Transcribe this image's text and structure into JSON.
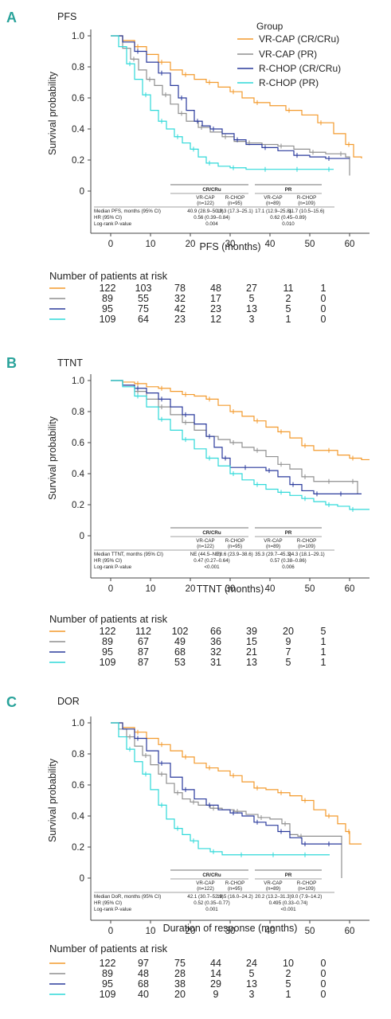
{
  "colors": {
    "vrcap_crcru": "#f39a2c",
    "vrcap_pr": "#8f8f8f",
    "rchop_crcru": "#2a3a9c",
    "rchop_pr": "#2fd9d9",
    "panel_letter": "#2aa39b"
  },
  "legend": {
    "title": "Group",
    "entries": [
      "VR-CAP (CR/CRu)",
      "VR-CAP (PR)",
      "R-CHOP (CR/CRu)",
      "R-CHOP (PR)"
    ]
  },
  "risk_title": "Number of patients at risk",
  "chart_data": [
    {
      "type": "line",
      "panel_letter": "A",
      "title": "PFS",
      "xlabel": "PFS (months)",
      "ylabel": "Survival probability",
      "xlim": [
        -5,
        65
      ],
      "ylim": [
        0,
        1
      ],
      "xticks": [
        "0",
        "10",
        "20",
        "30",
        "40",
        "50",
        "60"
      ],
      "yticks": [
        "0",
        "0.2",
        "0.4",
        "0.6",
        "0.8",
        "1.0"
      ],
      "series": [
        {
          "name": "VR-CAP (CR/CRu)",
          "x": [
            0,
            3,
            6,
            9,
            12,
            15,
            18,
            21,
            24,
            27,
            30,
            33,
            36,
            40,
            44,
            48,
            52,
            56,
            59,
            61,
            63
          ],
          "y": [
            1.0,
            0.97,
            0.93,
            0.88,
            0.83,
            0.78,
            0.75,
            0.72,
            0.7,
            0.67,
            0.64,
            0.6,
            0.57,
            0.55,
            0.52,
            0.49,
            0.44,
            0.37,
            0.3,
            0.22,
            0.21
          ]
        },
        {
          "name": "VR-CAP (PR)",
          "x": [
            0,
            3,
            5,
            7,
            9,
            11,
            13,
            15,
            17,
            19,
            22,
            25,
            28,
            31,
            34,
            38,
            42,
            46,
            50,
            54,
            57,
            59,
            60
          ],
          "y": [
            1.0,
            0.92,
            0.85,
            0.78,
            0.72,
            0.68,
            0.62,
            0.56,
            0.5,
            0.45,
            0.41,
            0.38,
            0.35,
            0.32,
            0.31,
            0.3,
            0.29,
            0.27,
            0.25,
            0.24,
            0.24,
            0.22,
            0.1
          ]
        },
        {
          "name": "R-CHOP (CR/CRu)",
          "x": [
            0,
            3,
            6,
            9,
            12,
            15,
            17,
            19,
            21,
            23,
            25,
            28,
            31,
            34,
            38,
            42,
            46,
            50,
            54,
            58,
            60
          ],
          "y": [
            1.0,
            0.96,
            0.9,
            0.83,
            0.76,
            0.68,
            0.6,
            0.52,
            0.45,
            0.42,
            0.4,
            0.37,
            0.33,
            0.3,
            0.28,
            0.26,
            0.23,
            0.22,
            0.21,
            0.21,
            0.21
          ]
        },
        {
          "name": "R-CHOP (PR)",
          "x": [
            0,
            2,
            4,
            6,
            8,
            10,
            12,
            14,
            16,
            18,
            20,
            22,
            24,
            27,
            30,
            34,
            38,
            42,
            46,
            50,
            54,
            56
          ],
          "y": [
            1.0,
            0.93,
            0.82,
            0.72,
            0.62,
            0.52,
            0.45,
            0.4,
            0.35,
            0.31,
            0.27,
            0.22,
            0.18,
            0.16,
            0.15,
            0.14,
            0.14,
            0.14,
            0.14,
            0.14,
            0.14,
            0.14
          ]
        }
      ],
      "stats_table": {
        "group_headers": [
          "CR/CRu",
          "PR"
        ],
        "col_headers": [
          [
            "VR-CAP",
            "(n=122)"
          ],
          [
            "R-CHOP",
            "(n=95)"
          ],
          [
            "VR-CAP",
            "(n=89)"
          ],
          [
            "R-CHOP",
            "(n=109)"
          ]
        ],
        "rows": [
          {
            "label": "Median PFS, months (95% CI)",
            "values": [
              "40.9 (28.9–50.2)",
              "19.3 (17.3–25.1)",
              "17.1 (12.9–25.8)",
              "11.7 (10.5–15.6)"
            ]
          },
          {
            "label": "HR (95% CI)",
            "values": [
              "0.56 (0.39–0.84)",
              "0.62 (0.45–0.89)"
            ]
          },
          {
            "label": "Log-rank P-value",
            "values": [
              "0.004",
              "0.010"
            ]
          }
        ]
      },
      "risk": [
        [
          "122",
          "103",
          "78",
          "48",
          "27",
          "11",
          "1"
        ],
        [
          "89",
          "55",
          "32",
          "17",
          "5",
          "2",
          "0"
        ],
        [
          "95",
          "75",
          "42",
          "23",
          "13",
          "5",
          "0"
        ],
        [
          "109",
          "64",
          "23",
          "12",
          "3",
          "1",
          "0"
        ]
      ]
    },
    {
      "type": "line",
      "panel_letter": "B",
      "title": "TTNT",
      "xlabel": "TTNT (months)",
      "ylabel": "Survival probability",
      "xlim": [
        -5,
        65
      ],
      "ylim": [
        0,
        1
      ],
      "xticks": [
        "0",
        "10",
        "20",
        "30",
        "40",
        "50",
        "60"
      ],
      "yticks": [
        "0",
        "0.2",
        "0.4",
        "0.6",
        "0.8",
        "1.0"
      ],
      "series": [
        {
          "name": "VR-CAP (CR/CRu)",
          "x": [
            0,
            3,
            6,
            9,
            12,
            15,
            18,
            21,
            24,
            27,
            30,
            33,
            36,
            39,
            42,
            45,
            48,
            51,
            54,
            57,
            60,
            63,
            65
          ],
          "y": [
            1.0,
            0.99,
            0.98,
            0.96,
            0.95,
            0.93,
            0.91,
            0.9,
            0.88,
            0.84,
            0.8,
            0.77,
            0.74,
            0.7,
            0.67,
            0.63,
            0.58,
            0.55,
            0.55,
            0.52,
            0.5,
            0.49,
            0.49
          ]
        },
        {
          "name": "VR-CAP (PR)",
          "x": [
            0,
            3,
            6,
            9,
            12,
            15,
            18,
            21,
            24,
            27,
            30,
            33,
            36,
            39,
            42,
            45,
            48,
            51,
            54,
            57,
            60,
            62
          ],
          "y": [
            1.0,
            0.97,
            0.93,
            0.88,
            0.83,
            0.78,
            0.73,
            0.68,
            0.64,
            0.62,
            0.6,
            0.57,
            0.55,
            0.51,
            0.46,
            0.43,
            0.38,
            0.35,
            0.35,
            0.35,
            0.35,
            0.27
          ]
        },
        {
          "name": "R-CHOP (CR/CRu)",
          "x": [
            0,
            3,
            6,
            9,
            12,
            15,
            18,
            21,
            24,
            26,
            28,
            30,
            33,
            36,
            39,
            42,
            45,
            48,
            51,
            54,
            57,
            60,
            63
          ],
          "y": [
            1.0,
            0.97,
            0.95,
            0.92,
            0.88,
            0.83,
            0.78,
            0.72,
            0.64,
            0.57,
            0.5,
            0.44,
            0.44,
            0.44,
            0.42,
            0.38,
            0.33,
            0.29,
            0.27,
            0.27,
            0.27,
            0.27,
            0.27
          ]
        },
        {
          "name": "R-CHOP (PR)",
          "x": [
            0,
            3,
            6,
            9,
            12,
            15,
            18,
            21,
            24,
            27,
            30,
            33,
            36,
            39,
            42,
            45,
            48,
            51,
            54,
            57,
            60,
            63,
            65
          ],
          "y": [
            1.0,
            0.96,
            0.9,
            0.83,
            0.75,
            0.68,
            0.62,
            0.56,
            0.5,
            0.45,
            0.4,
            0.36,
            0.33,
            0.3,
            0.28,
            0.26,
            0.24,
            0.22,
            0.2,
            0.19,
            0.17,
            0.17,
            0.17
          ]
        }
      ],
      "stats_table": {
        "group_headers": [
          "CR/CRu",
          "PR"
        ],
        "col_headers": [
          [
            "VR-CAP",
            "(n=122)"
          ],
          [
            "R-CHOP",
            "(n=95)"
          ],
          [
            "VR-CAP",
            "(n=89)"
          ],
          [
            "R-CHOP",
            "(n=109)"
          ]
        ],
        "rows": [
          {
            "label": "Median TTNT, months (95% CI)",
            "values": [
              "NE (44.5–NE)",
              "28.6 (23.9–38.6)",
              "35.3 (29.7–45.3)",
              "24.3 (18.1–29.1)"
            ]
          },
          {
            "label": "HR (95% CI)",
            "values": [
              "0.47 (0.27–0.64)",
              "0.57 (0.38–0.86)"
            ]
          },
          {
            "label": "Log-rank P-value",
            "values": [
              "<0.001",
              "0.006"
            ]
          }
        ]
      },
      "risk": [
        [
          "122",
          "112",
          "102",
          "66",
          "39",
          "20",
          "5"
        ],
        [
          "89",
          "67",
          "49",
          "36",
          "15",
          "9",
          "1"
        ],
        [
          "95",
          "87",
          "68",
          "32",
          "21",
          "7",
          "1"
        ],
        [
          "109",
          "87",
          "53",
          "31",
          "13",
          "5",
          "1"
        ]
      ]
    },
    {
      "type": "line",
      "panel_letter": "C",
      "title": "DOR",
      "xlabel": "Duration of response (months)",
      "ylabel": "Survival probability",
      "xlim": [
        -5,
        65
      ],
      "ylim": [
        0,
        1
      ],
      "xticks": [
        "0",
        "10",
        "20",
        "30",
        "40",
        "50",
        "60"
      ],
      "yticks": [
        "0",
        "0.2",
        "0.4",
        "0.6",
        "0.8",
        "1.0"
      ],
      "series": [
        {
          "name": "VR-CAP (CR/CRu)",
          "x": [
            0,
            3,
            6,
            9,
            12,
            15,
            18,
            21,
            24,
            27,
            30,
            33,
            36,
            39,
            42,
            45,
            48,
            51,
            54,
            57,
            59,
            60,
            63
          ],
          "y": [
            1.0,
            0.97,
            0.94,
            0.9,
            0.86,
            0.82,
            0.78,
            0.74,
            0.71,
            0.69,
            0.66,
            0.62,
            0.58,
            0.57,
            0.55,
            0.53,
            0.5,
            0.44,
            0.4,
            0.35,
            0.3,
            0.22,
            0.22
          ]
        },
        {
          "name": "VR-CAP (PR)",
          "x": [
            0,
            2,
            4,
            6,
            8,
            10,
            12,
            14,
            16,
            18,
            20,
            22,
            25,
            28,
            31,
            34,
            37,
            40,
            43,
            45,
            47,
            56,
            58
          ],
          "y": [
            1.0,
            0.96,
            0.91,
            0.85,
            0.79,
            0.73,
            0.67,
            0.61,
            0.55,
            0.51,
            0.49,
            0.47,
            0.45,
            0.44,
            0.43,
            0.41,
            0.39,
            0.38,
            0.35,
            0.28,
            0.27,
            0.27,
            0.0
          ]
        },
        {
          "name": "R-CHOP (CR/CRu)",
          "x": [
            0,
            3,
            6,
            9,
            12,
            15,
            18,
            21,
            24,
            27,
            30,
            33,
            36,
            39,
            42,
            45,
            48,
            51,
            54,
            57,
            58
          ],
          "y": [
            1.0,
            0.96,
            0.9,
            0.82,
            0.74,
            0.65,
            0.57,
            0.51,
            0.47,
            0.44,
            0.42,
            0.4,
            0.36,
            0.34,
            0.3,
            0.26,
            0.22,
            0.22,
            0.22,
            0.22,
            0.22
          ]
        },
        {
          "name": "R-CHOP (PR)",
          "x": [
            0,
            2,
            4,
            6,
            8,
            10,
            12,
            14,
            16,
            18,
            20,
            22,
            25,
            28,
            32,
            36,
            40,
            44,
            48,
            52,
            55
          ],
          "y": [
            1.0,
            0.91,
            0.83,
            0.75,
            0.67,
            0.57,
            0.47,
            0.38,
            0.32,
            0.28,
            0.24,
            0.19,
            0.17,
            0.15,
            0.15,
            0.15,
            0.15,
            0.15,
            0.15,
            0.15,
            0.15
          ]
        }
      ],
      "stats_table": {
        "group_headers": [
          "CR/CRu",
          "PR"
        ],
        "col_headers": [
          [
            "VR-CAP",
            "(n=122)"
          ],
          [
            "R-CHOP",
            "(n=95)"
          ],
          [
            "VR-CAP",
            "(n=89)"
          ],
          [
            "R-CHOP",
            "(n=109)"
          ]
        ],
        "rows": [
          {
            "label": "Median DoR, months (95% CI)",
            "values": [
              "42.1 (30.7–52.9)",
              "18.5 (16.0–24.2)",
              "20.2 (13.2–31.3)",
              "9.0 (7.9–14.2)"
            ]
          },
          {
            "label": "HR (95% CI)",
            "values": [
              "0.52 (0.35–0.77)",
              "0.495 (0.33–0.74)"
            ]
          },
          {
            "label": "Log-rank P-value",
            "values": [
              "0.001",
              "<0.001"
            ]
          }
        ]
      },
      "risk": [
        [
          "122",
          "97",
          "75",
          "44",
          "24",
          "10",
          "0"
        ],
        [
          "89",
          "48",
          "28",
          "14",
          "5",
          "2",
          "0"
        ],
        [
          "95",
          "68",
          "38",
          "29",
          "13",
          "5",
          "0"
        ],
        [
          "109",
          "40",
          "20",
          "9",
          "3",
          "1",
          "0"
        ]
      ]
    }
  ]
}
